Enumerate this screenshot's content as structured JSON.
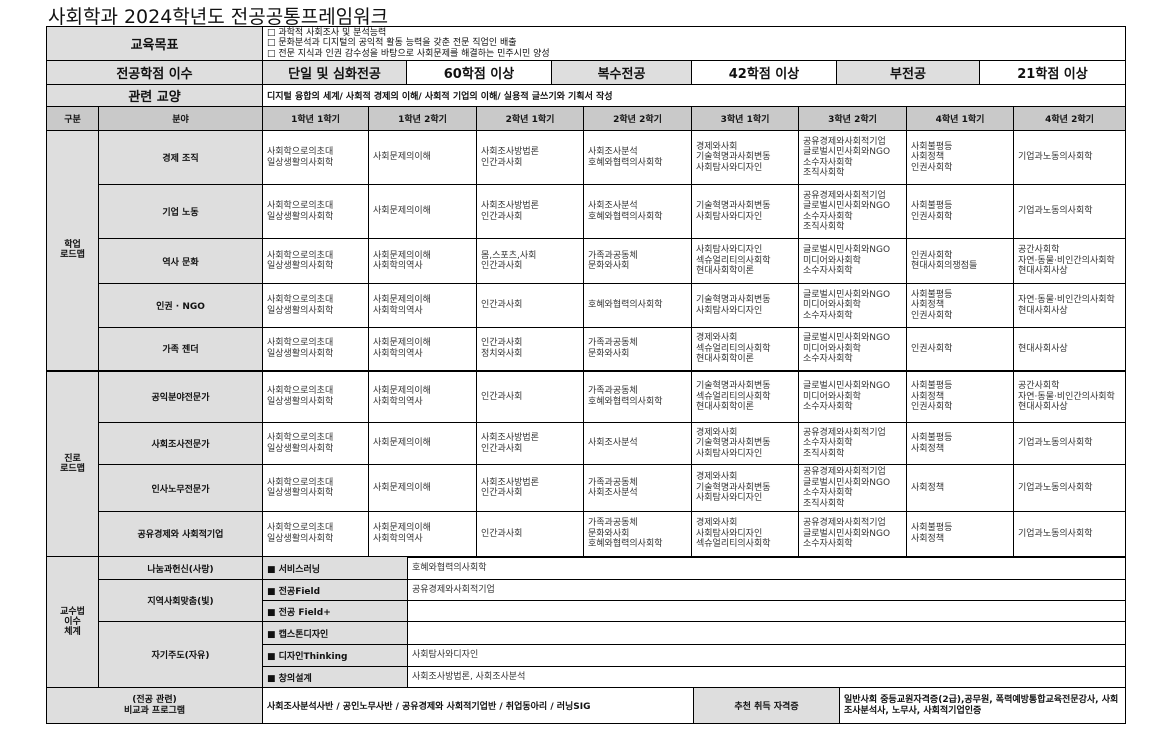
{
  "title": "사회학과 2024학년도 전공공통프레임워크",
  "goals": {
    "label": "교육목표",
    "items": [
      "□ 과학적 사회조사 및 분석능력",
      "□ 문화분석과 디지털의 공익적 활동 능력을 갖춘 전문 직업인 배출",
      "□ 전문 지식과 인권 감수성을 바탕으로 사회문제를 해결하는 민주시민 양성"
    ]
  },
  "credits": {
    "label": "전공학점 이수",
    "single_label": "단일 및 심화전공",
    "single_value": "60학점 이상",
    "double_label": "복수전공",
    "double_value": "42학점 이상",
    "minor_label": "부전공",
    "minor_value": "21학점 이상"
  },
  "liberal": {
    "label": "관련 교양",
    "value": "디지털 융합의 세계/ 사회적 경제의 이해/ 사회적 기업의 이해/ 실용적 글쓰기와 기획서 작성"
  },
  "grid": {
    "headers": [
      "구분",
      "분야",
      "1학년 1학기",
      "1학년 2학기",
      "2학년 1학기",
      "2학년 2학기",
      "3학년 1학기",
      "3학년 2학기",
      "4학년 1학기",
      "4학년 2학기"
    ],
    "groups": [
      {
        "label": "학업\n로드맵",
        "rows": [
          {
            "field": "경제 조직",
            "cells": [
              [
                "사회학으로의초대",
                "일상생활의사회학"
              ],
              [
                "사회문제의이해"
              ],
              [
                "사회조사방법론",
                "인간과사회"
              ],
              [
                "사회조사분석",
                "호혜와협력의사회학"
              ],
              [
                "경제와사회",
                "기술혁명과사회변동",
                "사회탐사와디자인"
              ],
              [
                "공유경제와사회적기업",
                "글로벌시민사회와NGO",
                "소수자사회학",
                "조직사회학"
              ],
              [
                "사회불평등",
                "사회정책",
                "인권사회학"
              ],
              [
                "기업과노동의사회학"
              ]
            ]
          },
          {
            "field": "기업 노동",
            "cells": [
              [
                "사회학으로의초대",
                "일상생활의사회학"
              ],
              [
                "사회문제의이해"
              ],
              [
                "사회조사방법론",
                "인간과사회"
              ],
              [
                "사회조사분석",
                "호혜와협력의사회학"
              ],
              [
                "기술혁명과사회변동",
                "사회탐사와디자인"
              ],
              [
                "공유경제와사회적기업",
                "글로벌시민사회와NGO",
                "소수자사회학",
                "조직사회학"
              ],
              [
                "사회불평등",
                "인권사회학"
              ],
              [
                "기업과노동의사회학"
              ]
            ]
          },
          {
            "field": "역사 문화",
            "cells": [
              [
                "사회학으로의초대",
                "일상생활의사회학"
              ],
              [
                "사회문제의이해",
                "사회학의역사"
              ],
              [
                "몸,스포츠,사회",
                "인간과사회"
              ],
              [
                "가족과공동체",
                "문화와사회"
              ],
              [
                "사회탐사와디자인",
                "섹슈얼리티의사회학",
                "현대사회학이론"
              ],
              [
                "글로벌시민사회와NGO",
                "미디어와사회학",
                "소수자사회학"
              ],
              [
                "인권사회학",
                "현대사회의쟁점들"
              ],
              [
                "공간사회학",
                "자연·동물·비인간의사회학",
                "현대사회사상"
              ]
            ]
          },
          {
            "field": "인권 · NGO",
            "cells": [
              [
                "사회학으로의초대",
                "일상생활의사회학"
              ],
              [
                "사회문제의이해",
                "사회학의역사"
              ],
              [
                "인간과사회"
              ],
              [
                "호혜와협력의사회학"
              ],
              [
                "기술혁명과사회변동",
                "사회탐사와디자인"
              ],
              [
                "글로벌시민사회와NGO",
                "미디어와사회학",
                "소수자사회학"
              ],
              [
                "사회불평등",
                "사회정책",
                "인권사회학"
              ],
              [
                "자연·동물·비인간의사회학",
                "현대사회사상"
              ]
            ]
          },
          {
            "field": "가족 젠더",
            "cells": [
              [
                "사회학으로의초대",
                "일상생활의사회학"
              ],
              [
                "사회문제의이해",
                "사회학의역사"
              ],
              [
                "인간과사회",
                "정치와사회"
              ],
              [
                "가족과공동체",
                "문화와사회"
              ],
              [
                "경제와사회",
                "섹슈얼리티의사회학",
                "현대사회학이론"
              ],
              [
                "글로벌시민사회와NGO",
                "미디어와사회학",
                "소수자사회학"
              ],
              [
                "인권사회학"
              ],
              [
                "현대사회사상"
              ]
            ]
          }
        ]
      },
      {
        "label": "진로\n로드맵",
        "rows": [
          {
            "field": "공익분야전문가",
            "cells": [
              [
                "사회학으로의초대",
                "일상생활의사회학"
              ],
              [
                "사회문제의이해",
                "사회학의역사"
              ],
              [
                "인간과사회"
              ],
              [
                "가족과공동체",
                "호혜와협력의사회학"
              ],
              [
                "기술혁명과사회변동",
                "섹슈얼리티의사회학",
                "현대사회학이론"
              ],
              [
                "글로벌시민사회와NGO",
                "미디어와사회학",
                "소수자사회학"
              ],
              [
                "사회불평등",
                "사회정책",
                "인권사회학"
              ],
              [
                "공간사회학",
                "자연·동물·비인간의사회학",
                "현대사회사상"
              ]
            ]
          },
          {
            "field": "사회조사전문가",
            "cells": [
              [
                "사회학으로의초대",
                "일상생활의사회학"
              ],
              [
                "사회문제의이해"
              ],
              [
                "사회조사방법론",
                "인간과사회"
              ],
              [
                "사회조사분석"
              ],
              [
                "경제와사회",
                "기술혁명과사회변동",
                "사회탐사와디자인"
              ],
              [
                "공유경제와사회적기업",
                "소수자사회학",
                "조직사회학"
              ],
              [
                "사회불평등",
                "사회정책"
              ],
              [
                "기업과노동의사회학"
              ]
            ]
          },
          {
            "field": "인사노무전문가",
            "cells": [
              [
                "사회학으로의초대",
                "일상생활의사회학"
              ],
              [
                "사회문제의이해"
              ],
              [
                "사회조사방법론",
                "인간과사회"
              ],
              [
                "가족과공동체",
                "사회조사분석"
              ],
              [
                "경제와사회",
                "기술혁명과사회변동",
                "사회탐사와디자인"
              ],
              [
                "공유경제와사회적기업",
                "글로벌시민사회와NGO",
                "소수자사회학",
                "조직사회학"
              ],
              [
                "사회정책"
              ],
              [
                "기업과노동의사회학"
              ]
            ]
          },
          {
            "field": "공유경제와 사회적기업",
            "cells": [
              [
                "사회학으로의초대",
                "일상생활의사회학"
              ],
              [
                "사회문제의이해",
                "사회학의역사"
              ],
              [
                "인간과사회"
              ],
              [
                "가족과공동체",
                "문화와사회",
                "호혜와협력의사회학"
              ],
              [
                "경제와사회",
                "사회탐사와디자인",
                "섹슈얼리티의사회학"
              ],
              [
                "공유경제와사회적기업",
                "글로벌시민사회와NGO",
                "소수자사회학"
              ],
              [
                "사회불평등",
                "사회정책"
              ],
              [
                "기업과노동의사회학"
              ]
            ]
          }
        ]
      }
    ]
  },
  "teaching": {
    "label": "교수법\n이수\n체계",
    "groups": [
      {
        "name": "나눔과헌신(사랑)",
        "items": [
          {
            "label": "■ 서비스러닝",
            "value": "호혜와협력의사회학"
          }
        ]
      },
      {
        "name": "지역사회맞춤(빛)",
        "items": [
          {
            "label": "■ 전공Field",
            "value": "공유경제와사회적기업"
          },
          {
            "label": "■ 전공 Field+",
            "value": ""
          }
        ]
      },
      {
        "name": "자기주도(자유)",
        "items": [
          {
            "label": "■ 캡스톤디자인",
            "value": ""
          },
          {
            "label": "■ 디자인Thinking",
            "value": "사회탐사와디자인"
          },
          {
            "label": "■ 창의설계",
            "value": "사회조사방법론, 사회조사분석"
          }
        ]
      }
    ]
  },
  "extra": {
    "label": "(전공 관련)\n비교과 프로그램",
    "value": "사회조사분석사반 / 공인노무사반 / 공유경제와 사회적기업반 / 취업동아리 / 러닝SIG",
    "cert_label": "추천 취득 자격증",
    "cert_value": "일반사회 중등교원자격증(2급),공무원, 폭력예방통합교육전문강사, 사회조사분석사, 노무사, 사회적기업인증"
  }
}
